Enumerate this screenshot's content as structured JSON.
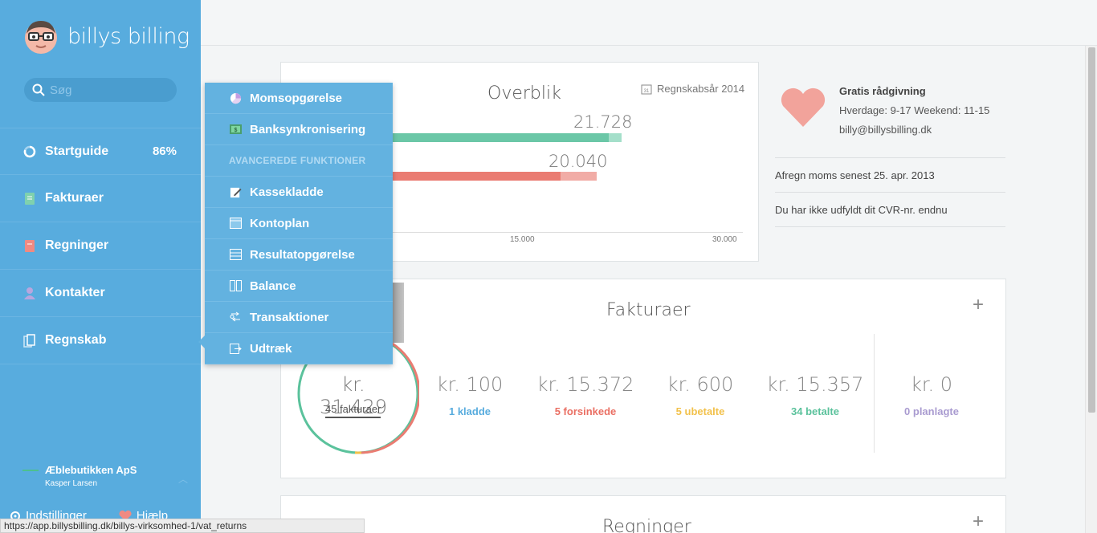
{
  "app": {
    "logo_text": "billys billing"
  },
  "search": {
    "placeholder": "Søg"
  },
  "sidebar": {
    "items": [
      {
        "label": "Startguide",
        "badge": "86%",
        "icon": "progress-circle-icon"
      },
      {
        "label": "Fakturaer",
        "icon": "invoice-icon"
      },
      {
        "label": "Regninger",
        "icon": "bill-icon"
      },
      {
        "label": "Kontakter",
        "icon": "contact-icon"
      },
      {
        "label": "Regnskab",
        "icon": "accounting-icon"
      }
    ],
    "company": {
      "name": "Æblebutikken ApS",
      "user": "Kasper Larsen"
    },
    "bottom": {
      "settings": "Indstillinger",
      "help": "Hjælp"
    }
  },
  "dropdown": {
    "items_top": [
      {
        "label": "Momsopgørelse",
        "icon": "pie-icon"
      },
      {
        "label": "Banksynkronisering",
        "icon": "bank-icon"
      }
    ],
    "heading": "AVANCEREDE FUNKTIONER",
    "items_advanced": [
      {
        "label": "Kassekladde",
        "icon": "edit-icon"
      },
      {
        "label": "Kontoplan",
        "icon": "chart-of-accounts-icon"
      },
      {
        "label": "Resultatopgørelse",
        "icon": "income-statement-icon"
      },
      {
        "label": "Balance",
        "icon": "balance-icon"
      },
      {
        "label": "Transaktioner",
        "icon": "transactions-icon"
      },
      {
        "label": "Udtræk",
        "icon": "export-icon"
      }
    ]
  },
  "overview": {
    "title": "Overblik",
    "year": "Regnskabsår 2014",
    "year_icon_text": "31",
    "bar1_value": "21.728",
    "bar2_value": "20.040",
    "ticks": [
      "15.000",
      "30.000"
    ],
    "colors": {
      "green": "#6bc7a7",
      "green_light": "#a4dfca",
      "red": "#ea7c72",
      "red_light": "#f1aca6"
    }
  },
  "info": {
    "heading": "Gratis rådgivning",
    "hours": "Hverdage: 9-17 Weekend: 11-15",
    "email": "billy@billysbilling.dk",
    "notice1": "Afregn moms senest 25. apr. 2013",
    "notice2": "Du har ikke udfyldt dit CVR-nr. endnu"
  },
  "invoices": {
    "title": "Fakturaer",
    "total": "kr. 31.429",
    "count_label": "45 fakturaer",
    "stats": [
      {
        "value": "kr. 100",
        "label": "1 kladde",
        "color": "#58acde"
      },
      {
        "value": "kr. 15.372",
        "label": "5 forsinkede",
        "color": "#ea6f63"
      },
      {
        "value": "kr. 600",
        "label": "5 ubetalte",
        "color": "#f2c14b"
      },
      {
        "value": "kr. 15.357",
        "label": "34 betalte",
        "color": "#5bc29c"
      },
      {
        "value": "kr. 0",
        "label": "0 planlagte",
        "color": "#a99bd0"
      }
    ]
  },
  "bills": {
    "title": "Regninger"
  },
  "plus": "+",
  "statusbar": {
    "url": "https://app.billysbilling.dk/billys-virksomhed-1/vat_returns"
  }
}
